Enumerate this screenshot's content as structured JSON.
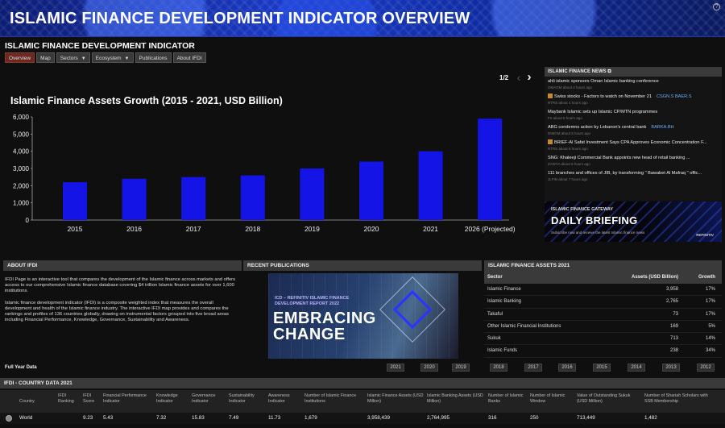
{
  "banner": {
    "title": "ISLAMIC FINANCE DEVELOPMENT INDICATOR OVERVIEW"
  },
  "subtitle": "ISLAMIC FINANCE DEVELOPMENT INDICATOR",
  "nav": {
    "tabs": [
      "Overview",
      "Map",
      "Sectors",
      "Ecosystem",
      "Publications",
      "About IFDI"
    ]
  },
  "pager": {
    "text": "1/2"
  },
  "chart_data": {
    "type": "bar",
    "title": "Islamic Finance Assets Growth (2015 - 2021, USD Billion)",
    "categories": [
      "2015",
      "2016",
      "2017",
      "2018",
      "2019",
      "2020",
      "2021",
      "2026 (Projected)"
    ],
    "values": [
      2200,
      2400,
      2500,
      2600,
      3000,
      3400,
      4000,
      5900
    ],
    "yticks": [
      "6,000",
      "5,000",
      "4,000",
      "3,000",
      "2,000",
      "1,000",
      "0"
    ],
    "ylim": [
      0,
      6000
    ],
    "xlabel": "",
    "ylabel": "",
    "color": "#1414e6"
  },
  "news": {
    "header": "ISLAMIC FINANCE NEWS",
    "items": [
      {
        "title": "ahli islamic sponsors Oman Islamic banking conference",
        "meta": "OMAGM  about 4 hours ago",
        "tickers": ""
      },
      {
        "title": "Swiss stocks - Factors to watch on November 21",
        "meta": "RTRS  about 4 hours ago",
        "tickers": "CSGN.S  BAER.S",
        "icon": true
      },
      {
        "title": "Maybank Islamic sets up Islamic CP/MTN programmes",
        "meta": "FII  about 5 hours ago",
        "tickers": ""
      },
      {
        "title": "ABG condemns action by Lebanon's central bank",
        "meta": "DIMGM  about 5 hours ago",
        "tickers": "BARKA.BH"
      },
      {
        "title": "BRIEF-Al Safat Investment Says CPA Approves Economic Concentration F...",
        "meta": "RTRS  about 6 hours ago",
        "tickers": "",
        "icon": true
      },
      {
        "title": "SNG: Khaleeji Commercial Bank appoints new head of retail banking ...",
        "meta": "ZAWYA  about 6 hours ago",
        "tickers": ""
      },
      {
        "title": "111 branches and offices of JIB, by transforming \" Bawabet Al Mafraq \" offic...",
        "meta": "JLFIN  about 7 hours ago",
        "tickers": ""
      }
    ]
  },
  "briefing": {
    "kicker": "ISLAMIC FINANCE GATEWAY",
    "title": "DAILY BRIEFING",
    "subtext": "Subscribe now and receive the latest Islamic finance news",
    "brand": "REFINITIV"
  },
  "about": {
    "header": "ABOUT IFDI",
    "p1": "IFDI Page is an interactive tool that compares the development of the Islamic finance across markets and offers access to our comprehensive Islamic finance database covering $4 trillion Islamic finance assets for over 1,600 institutions.",
    "p2": "Islamic finance development indicator (IFDI) is a composite weighted index that measures the overall development and health of the Islamic finance industry. The interactive IFDI map provides and compares the rankings and profiles of 136 countries globally, drawing on instrumental factors grouped into five broad areas including Financial Performance, Knowledge, Governance, Sustainability and Awareness."
  },
  "publications": {
    "header": "RECENT PUBLICATIONS",
    "kicker": "ICD – REFINITIV ISLAMIC FINANCE DEVELOPMENT REPORT 2022",
    "headline1": "EMBRACING",
    "headline2": "CHANGE"
  },
  "assets": {
    "header": "ISLAMIC FINANCE ASSETS 2021",
    "columns": [
      "Sector",
      "Assets (USD Billion)",
      "Growth"
    ],
    "rows": [
      [
        "Islamic Finance",
        "3,958",
        "17%"
      ],
      [
        "Islamic Banking",
        "2,765",
        "17%"
      ],
      [
        "Takaful",
        "73",
        "17%"
      ],
      [
        "Other Islamic Financial Institutions",
        "169",
        "5%"
      ],
      [
        "Sukuk",
        "713",
        "14%"
      ],
      [
        "Islamic Funds",
        "238",
        "34%"
      ]
    ]
  },
  "full_year": {
    "label": "Full Year Data",
    "years": [
      "2021",
      "2020",
      "2019",
      "2018",
      "2017",
      "2016",
      "2015",
      "2014",
      "2013",
      "2012"
    ]
  },
  "country": {
    "header": "IFDI - COUNTRY DATA 2021",
    "columns": [
      "Country",
      "IFDI Ranking",
      "IFDI Score",
      "Financial Performance Indicator",
      "Knowledge Indicator",
      "Governance Indicator",
      "Sustainability Indicator",
      "Awareness Indicator",
      "Number of Islamic Finance Institutions",
      "Islamic Finance Assets (USD Million)",
      "Islamic Banking Assets (USD Million)",
      "Number of Islamic Banks",
      "Number of Islamic Window",
      "Value of Outstanding Sukuk (USD Million)",
      "Number of Shariah Scholars with SSB Membership"
    ],
    "row": [
      "World",
      "",
      "9.23",
      "5.43",
      "7.32",
      "15.83",
      "7.49",
      "11.73",
      "1,679",
      "3,958,439",
      "2,764,995",
      "316",
      "250",
      "713,449",
      "1,482"
    ]
  }
}
